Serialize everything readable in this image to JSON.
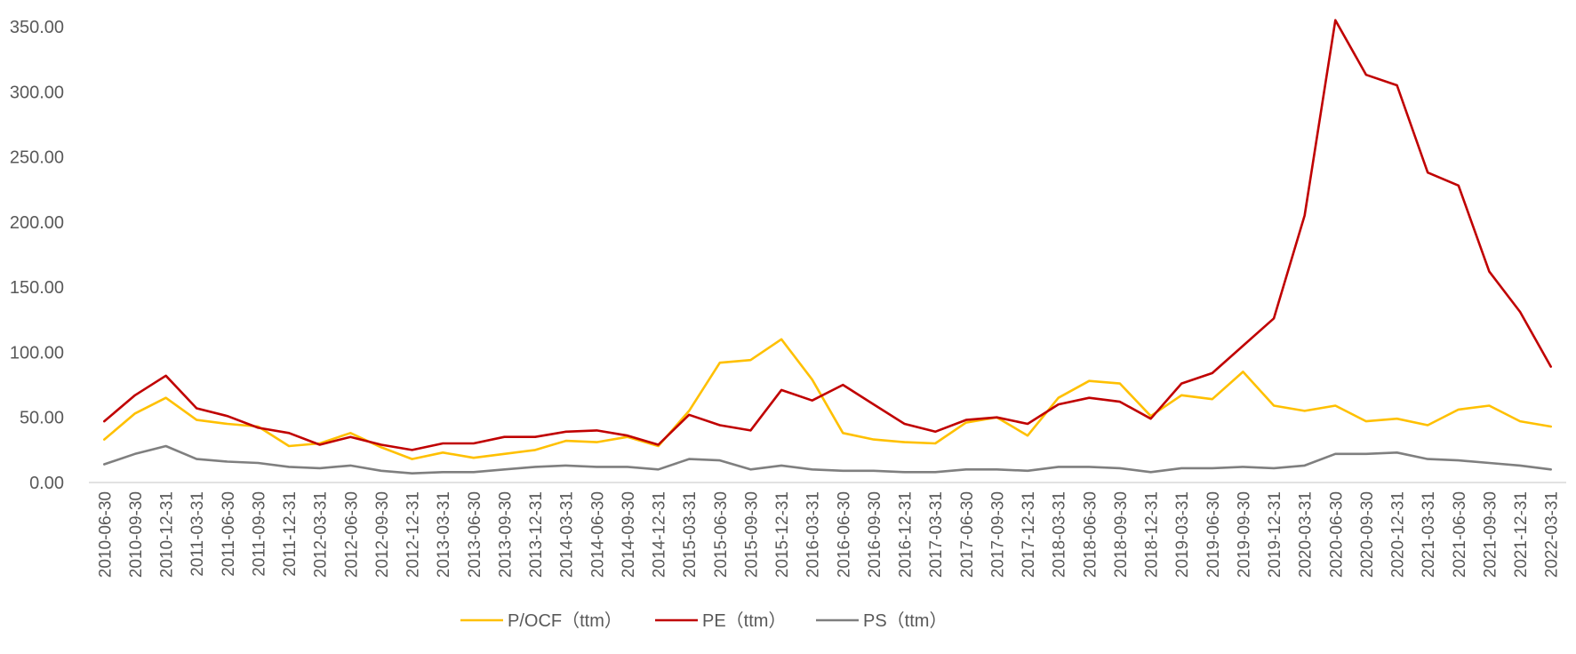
{
  "chart_data": {
    "type": "line",
    "title": "",
    "xlabel": "",
    "ylabel": "",
    "ylim": [
      0,
      350
    ],
    "y_ticks": [
      "0.00",
      "50.00",
      "100.00",
      "150.00",
      "200.00",
      "250.00",
      "300.00",
      "350.00"
    ],
    "grid": false,
    "legend_position": "bottom",
    "categories": [
      "2010-06-30",
      "2010-09-30",
      "2010-12-31",
      "2011-03-31",
      "2011-06-30",
      "2011-09-30",
      "2011-12-31",
      "2012-03-31",
      "2012-06-30",
      "2012-09-30",
      "2012-12-31",
      "2013-03-31",
      "2013-06-30",
      "2013-09-30",
      "2013-12-31",
      "2014-03-31",
      "2014-06-30",
      "2014-09-30",
      "2014-12-31",
      "2015-03-31",
      "2015-06-30",
      "2015-09-30",
      "2015-12-31",
      "2016-03-31",
      "2016-06-30",
      "2016-09-30",
      "2016-12-31",
      "2017-03-31",
      "2017-06-30",
      "2017-09-30",
      "2017-12-31",
      "2018-03-31",
      "2018-06-30",
      "2018-09-30",
      "2018-12-31",
      "2019-03-31",
      "2019-06-30",
      "2019-09-30",
      "2019-12-31",
      "2020-03-31",
      "2020-06-30",
      "2020-09-30",
      "2020-12-31",
      "2021-03-31",
      "2021-06-30",
      "2021-09-30",
      "2021-12-31",
      "2022-03-31"
    ],
    "series": [
      {
        "name": "P/OCF（ttm）",
        "color": "#FFC000",
        "values": [
          33,
          53,
          65,
          48,
          45,
          43,
          28,
          30,
          38,
          27,
          18,
          23,
          19,
          22,
          25,
          32,
          31,
          35,
          28,
          55,
          92,
          94,
          110,
          79,
          38,
          33,
          31,
          30,
          46,
          50,
          36,
          65,
          78,
          76,
          51,
          67,
          64,
          85,
          59,
          55,
          59,
          47,
          49,
          44,
          56,
          59,
          47,
          43
        ]
      },
      {
        "name": "PE（ttm）",
        "color": "#C00000",
        "values": [
          47,
          67,
          82,
          57,
          51,
          42,
          38,
          29,
          35,
          29,
          25,
          30,
          30,
          35,
          35,
          39,
          40,
          36,
          29,
          52,
          44,
          40,
          71,
          63,
          75,
          60,
          45,
          39,
          48,
          50,
          45,
          60,
          65,
          62,
          49,
          76,
          84,
          105,
          126,
          205,
          355,
          313,
          305,
          238,
          228,
          162,
          131,
          89
        ]
      },
      {
        "name": "PS（ttm）",
        "color": "#7F7F7F",
        "values": [
          14,
          22,
          28,
          18,
          16,
          15,
          12,
          11,
          13,
          9,
          7,
          8,
          8,
          10,
          12,
          13,
          12,
          12,
          10,
          18,
          17,
          10,
          13,
          10,
          9,
          9,
          8,
          8,
          10,
          10,
          9,
          12,
          12,
          11,
          8,
          11,
          11,
          12,
          11,
          13,
          22,
          22,
          23,
          18,
          17,
          15,
          13,
          10
        ]
      }
    ]
  }
}
